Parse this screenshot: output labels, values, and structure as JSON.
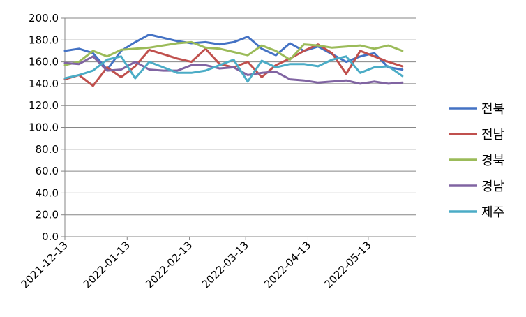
{
  "chart_data": {
    "type": "line",
    "title": "",
    "xlabel": "",
    "ylabel": "",
    "ylim": [
      0,
      200
    ],
    "yticks": [
      "0.0",
      "20.0",
      "40.0",
      "60.0",
      "80.0",
      "100.0",
      "120.0",
      "140.0",
      "160.0",
      "180.0",
      "200.0"
    ],
    "xtick_labels": [
      "2021-12-13",
      "2022-01-13",
      "2022-02-13",
      "2022-03-13",
      "2022-04-13",
      "2022-05-13"
    ],
    "x": [
      "2021-12-13",
      "2021-12-20",
      "2021-12-27",
      "2022-01-03",
      "2022-01-10",
      "2022-01-17",
      "2022-01-24",
      "2022-01-31",
      "2022-02-07",
      "2022-02-14",
      "2022-02-21",
      "2022-02-28",
      "2022-03-07",
      "2022-03-14",
      "2022-03-21",
      "2022-03-28",
      "2022-04-04",
      "2022-04-11",
      "2022-04-18",
      "2022-04-25",
      "2022-05-02",
      "2022-05-09",
      "2022-05-16",
      "2022-05-23",
      "2022-05-30"
    ],
    "grid": true,
    "legend_position": "right",
    "series": [
      {
        "name": "전북",
        "color": "#4472C4",
        "values": [
          170,
          172,
          168,
          153,
          170,
          178,
          185,
          182,
          179,
          177,
          178,
          176,
          178,
          183,
          172,
          166,
          177,
          170,
          174,
          167,
          160,
          165,
          168,
          155,
          153
        ]
      },
      {
        "name": "전남",
        "color": "#C0504D",
        "values": [
          144,
          148,
          138,
          155,
          146,
          156,
          171,
          167,
          163,
          160,
          172,
          158,
          155,
          160,
          146,
          157,
          163,
          170,
          176,
          168,
          149,
          170,
          165,
          160,
          156
        ]
      },
      {
        "name": "경북",
        "color": "#9BBB59",
        "values": [
          157,
          160,
          170,
          165,
          171,
          172,
          173,
          175,
          177,
          178,
          173,
          172,
          169,
          166,
          175,
          170,
          162,
          176,
          175,
          173,
          174,
          175,
          172,
          175,
          170
        ]
      },
      {
        "name": "경남",
        "color": "#8064A2",
        "values": [
          159,
          158,
          165,
          152,
          153,
          160,
          153,
          152,
          152,
          157,
          157,
          154,
          155,
          148,
          150,
          151,
          144,
          143,
          141,
          142,
          143,
          140,
          142,
          140,
          141
        ]
      },
      {
        "name": "제주",
        "color": "#4BACC6",
        "values": [
          145,
          148,
          152,
          162,
          165,
          145,
          160,
          155,
          150,
          150,
          152,
          157,
          162,
          142,
          161,
          155,
          158,
          158,
          156,
          162,
          165,
          150,
          155,
          156,
          147
        ]
      }
    ]
  }
}
